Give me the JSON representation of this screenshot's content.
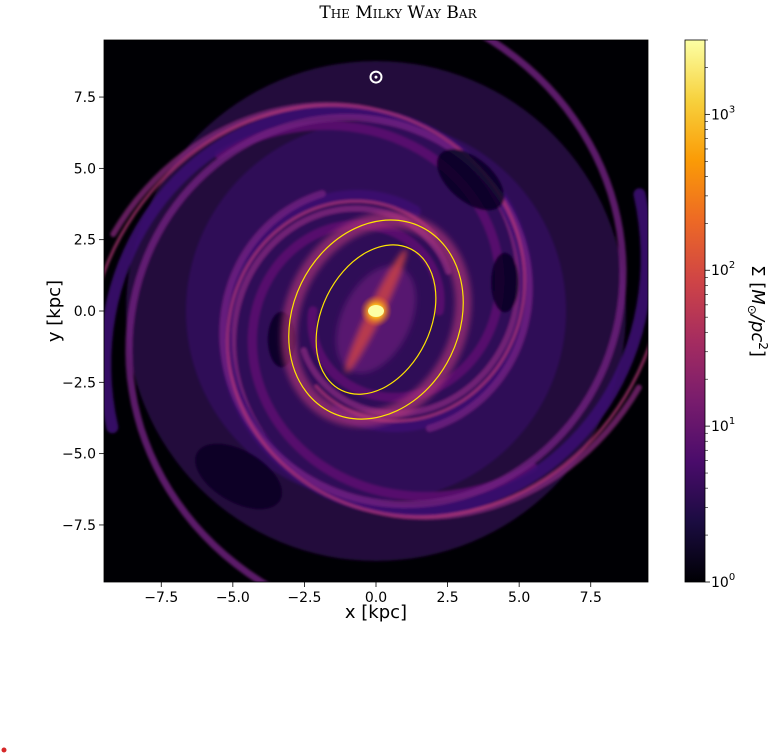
{
  "chart_data": {
    "type": "heatmap",
    "title": "The Milky Way Bar",
    "xlabel": "x [kpc]",
    "ylabel": "y [kpc]",
    "xlim": [
      -9.5,
      9.5
    ],
    "ylim": [
      -9.5,
      9.5
    ],
    "xticks": [
      -7.5,
      -5.0,
      -2.5,
      0.0,
      2.5,
      5.0,
      7.5
    ],
    "xtick_labels": [
      "−7.5",
      "−5.0",
      "−2.5",
      "0.0",
      "2.5",
      "5.0",
      "7.5"
    ],
    "yticks": [
      7.5,
      5.0,
      2.5,
      0.0,
      -2.5,
      -5.0,
      -7.5
    ],
    "ytick_labels": [
      "7.5",
      "5.0",
      "2.5",
      "0.0",
      "−2.5",
      "−5.0",
      "−7.5"
    ],
    "colorbar": {
      "label": "Σ  [M⊙/pc²]",
      "scale": "log",
      "range": [
        1,
        3000
      ],
      "ticks": [
        1,
        10,
        100,
        1000
      ],
      "tick_bases": [
        "10",
        "10",
        "10",
        "10"
      ],
      "tick_exponents": [
        "0",
        "1",
        "2",
        "3"
      ],
      "colormap": [
        "#000004",
        "#1b0c41",
        "#4a0c6b",
        "#781c6d",
        "#a52c60",
        "#cf4446",
        "#ed6925",
        "#fb9b06",
        "#f7d13d",
        "#fcffa4"
      ]
    },
    "overlays": {
      "sun_marker": {
        "x": 0.0,
        "y": 8.2,
        "symbol": "⊙"
      },
      "ellipses": [
        {
          "center": [
            0.0,
            -0.3
          ],
          "semi_major": 3.6,
          "semi_minor": 2.9,
          "angle_deg": 64,
          "color": "#ffe600"
        },
        {
          "center": [
            0.0,
            -0.3
          ],
          "semi_major": 2.75,
          "semi_minor": 1.9,
          "angle_deg": 64,
          "color": "#ffe600"
        }
      ],
      "bar_core": {
        "x": 0.0,
        "y": 0.0,
        "color": "#fcffa4"
      }
    },
    "grid": false
  }
}
